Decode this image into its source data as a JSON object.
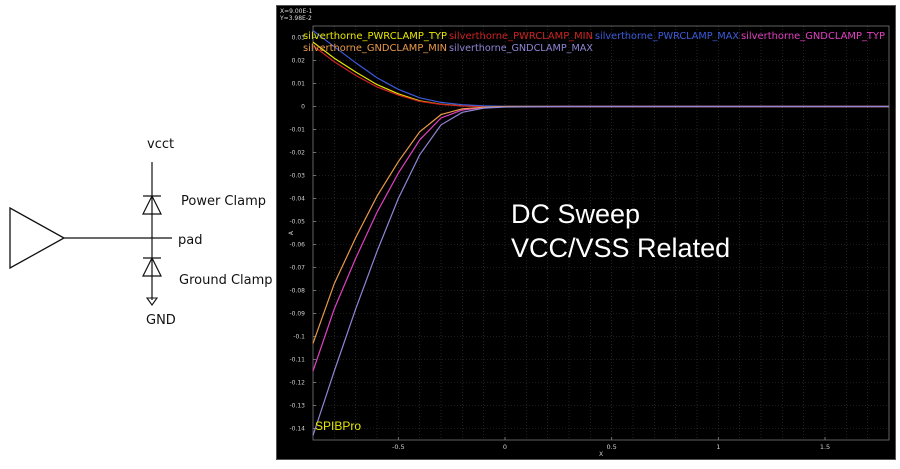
{
  "schematic": {
    "labels": {
      "vcc": "vcct",
      "power_clamp": "Power Clamp",
      "pad": "pad",
      "ground_clamp": "Ground Clamp",
      "gnd": "GND"
    }
  },
  "plot": {
    "readout": {
      "x": "X=9.00E-1",
      "y": "Y=3.98E-2"
    },
    "annotation": {
      "line1": "DC Sweep",
      "line2": "VCC/VSS Related"
    },
    "watermark": "SPIBPro",
    "watermark_color": "#e8e800",
    "background": "#000000",
    "grid_color": "#3a3a3a"
  },
  "chart_data": {
    "type": "line",
    "xlabel": "X",
    "ylabel": "A",
    "xlim": [
      -0.9,
      1.8
    ],
    "ylim": [
      -0.145,
      0.035
    ],
    "x_ticks": [
      -0.5,
      0,
      0.5,
      1,
      1.5
    ],
    "x_tick_labels": [
      "-0.5",
      "0",
      "0.5",
      "1",
      "1.5"
    ],
    "y_ticks": [
      0.03,
      0.02,
      0.01,
      0,
      -0.01,
      -0.02,
      -0.03,
      -0.04,
      -0.05,
      -0.06,
      -0.07,
      -0.08,
      -0.09,
      -0.1,
      -0.11,
      -0.12,
      -0.13,
      -0.14
    ],
    "y_tick_labels": [
      "0.03",
      "0.02",
      "0.01",
      "0",
      "-0.01",
      "-0.02",
      "-0.03",
      "-0.04",
      "-0.05",
      "-0.06",
      "-0.07",
      "-0.08",
      "-0.09",
      "-0.1",
      "-0.11",
      "-0.12",
      "-0.13",
      "-0.14"
    ],
    "grid": true,
    "legend_placement": "top",
    "series": [
      {
        "name": "silverthorne_PWRCLAMP_TYP",
        "color": "#e6e600",
        "points": [
          [
            -0.9,
            0.028
          ],
          [
            -0.8,
            0.021
          ],
          [
            -0.7,
            0.015
          ],
          [
            -0.6,
            0.0095
          ],
          [
            -0.5,
            0.0055
          ],
          [
            -0.4,
            0.0025
          ],
          [
            -0.3,
            0.001
          ],
          [
            -0.2,
            0.0003
          ],
          [
            -0.1,
            0
          ],
          [
            1.8,
            0
          ]
        ]
      },
      {
        "name": "silverthorne_PWRCLAMP_MIN",
        "color": "#cc2222",
        "points": [
          [
            -0.9,
            0.0265
          ],
          [
            -0.8,
            0.0195
          ],
          [
            -0.7,
            0.0135
          ],
          [
            -0.6,
            0.0085
          ],
          [
            -0.5,
            0.005
          ],
          [
            -0.4,
            0.0022
          ],
          [
            -0.3,
            0.0009
          ],
          [
            -0.2,
            0.0002
          ],
          [
            -0.1,
            0
          ],
          [
            1.8,
            0
          ]
        ]
      },
      {
        "name": "silverthorne_PWRCLAMP_MAX",
        "color": "#3b5bdb",
        "points": [
          [
            -0.9,
            0.033
          ],
          [
            -0.8,
            0.026
          ],
          [
            -0.7,
            0.019
          ],
          [
            -0.6,
            0.0125
          ],
          [
            -0.5,
            0.0075
          ],
          [
            -0.4,
            0.0038
          ],
          [
            -0.3,
            0.0018
          ],
          [
            -0.2,
            0.0008
          ],
          [
            -0.1,
            0.0003
          ],
          [
            0,
            0.0001
          ],
          [
            0.45,
            0
          ],
          [
            1.8,
            0
          ]
        ]
      },
      {
        "name": "silverthorne_GNDCLAMP_TYP",
        "color": "#e040c0",
        "points": [
          [
            -0.9,
            -0.115
          ],
          [
            -0.8,
            -0.088
          ],
          [
            -0.7,
            -0.066
          ],
          [
            -0.6,
            -0.046
          ],
          [
            -0.5,
            -0.029
          ],
          [
            -0.4,
            -0.0145
          ],
          [
            -0.3,
            -0.005
          ],
          [
            -0.2,
            -0.0015
          ],
          [
            -0.1,
            -0.0004
          ],
          [
            0,
            -0.0001
          ],
          [
            0.2,
            0
          ],
          [
            1.8,
            0
          ]
        ]
      },
      {
        "name": "silverthorne_GNDCLAMP_MIN",
        "color": "#e89a4a",
        "points": [
          [
            -0.9,
            -0.103
          ],
          [
            -0.8,
            -0.077
          ],
          [
            -0.7,
            -0.057
          ],
          [
            -0.6,
            -0.039
          ],
          [
            -0.5,
            -0.024
          ],
          [
            -0.4,
            -0.011
          ],
          [
            -0.3,
            -0.0035
          ],
          [
            -0.2,
            -0.001
          ],
          [
            -0.1,
            -0.0003
          ],
          [
            0,
            0
          ],
          [
            1.8,
            0
          ]
        ]
      },
      {
        "name": "silverthorne_GNDCLAMP_MAX",
        "color": "#8f86d6",
        "points": [
          [
            -0.9,
            -0.143
          ],
          [
            -0.8,
            -0.115
          ],
          [
            -0.7,
            -0.088
          ],
          [
            -0.6,
            -0.063
          ],
          [
            -0.5,
            -0.04
          ],
          [
            -0.4,
            -0.021
          ],
          [
            -0.3,
            -0.008
          ],
          [
            -0.2,
            -0.0025
          ],
          [
            -0.1,
            -0.0007
          ],
          [
            0,
            -0.0002
          ],
          [
            0.3,
            0
          ],
          [
            1.8,
            0
          ]
        ]
      }
    ]
  }
}
